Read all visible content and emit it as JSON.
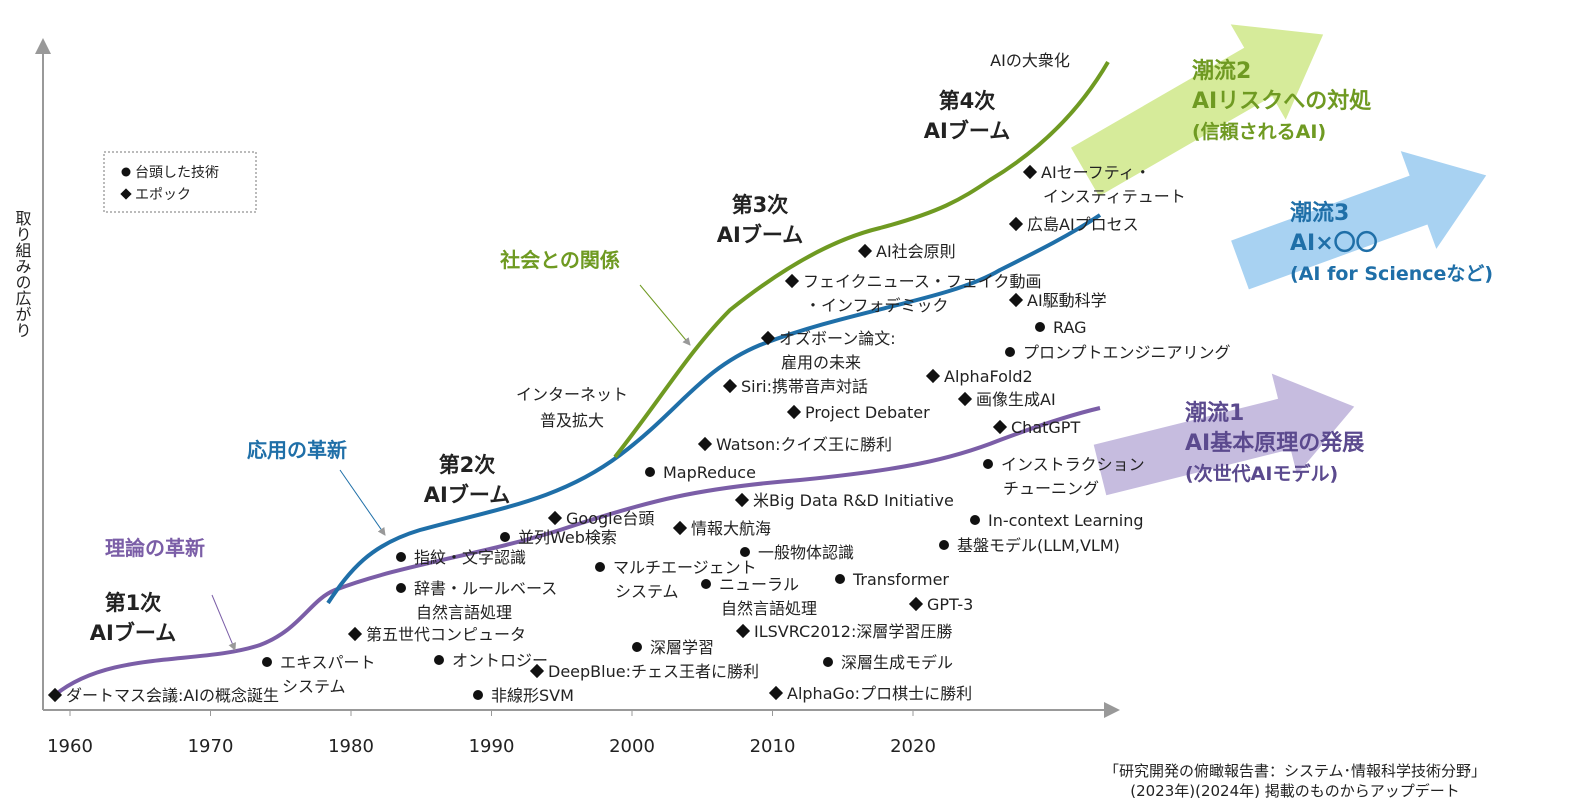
{
  "y_axis_label": "取り組みの広がり",
  "x_axis_ticks": [
    1960,
    1970,
    1980,
    1990,
    2000,
    2010,
    2020
  ],
  "legend": {
    "technology": "台頭した技術",
    "epoch": "エポック"
  },
  "booms": [
    [
      "第1次",
      "AIブーム"
    ],
    [
      "第2次",
      "AIブーム"
    ],
    [
      "第3次",
      "AIブーム"
    ],
    [
      "第4次",
      "AIブーム"
    ]
  ],
  "themes": {
    "theory": "理論の革新",
    "application": "応用の革新",
    "society": "社会との関係"
  },
  "annotations": {
    "internet": [
      "インターネット",
      "普及拡大"
    ],
    "mass": "AIの大衆化"
  },
  "trends": [
    {
      "title": "潮流2",
      "lines": [
        "AIリスクへの対処",
        "(信頼されるAI)"
      ]
    },
    {
      "title": "潮流3",
      "lines": [
        "AI×〇〇",
        "(AI for Scienceなど)"
      ]
    },
    {
      "title": "潮流1",
      "lines": [
        "AI基本原理の発展",
        "(次世代AIモデル)"
      ]
    }
  ],
  "technologies": [
    [
      "エキスパート",
      "システム"
    ],
    [
      "指紋・文字認識"
    ],
    [
      "辞書・ルールベース",
      "自然言語処理"
    ],
    [
      "オントロジー"
    ],
    [
      "非線形SVM"
    ],
    [
      "並列Web検索"
    ],
    [
      "マルチエージェント",
      "システム"
    ],
    [
      "深層学習"
    ],
    [
      "MapReduce"
    ],
    [
      "ニューラル",
      "自然言語処理"
    ],
    [
      "一般物体認識"
    ],
    [
      "Transformer"
    ],
    [
      "深層生成モデル"
    ],
    [
      "基盤モデル(LLM,VLM)"
    ],
    [
      "In-context Learning"
    ],
    [
      "インストラクション",
      "チューニング"
    ],
    [
      "プロンプトエンジニアリング"
    ],
    [
      "RAG"
    ]
  ],
  "epochs": [
    [
      "ダートマス会議:AIの概念誕生"
    ],
    [
      "第五世代コンピュータ"
    ],
    [
      "Google台頭"
    ],
    [
      "情報大航海"
    ],
    [
      "DeepBlue:チェス王者に勝利"
    ],
    [
      "Watson:クイズ王に勝利"
    ],
    [
      "米Big Data R&D Initiative"
    ],
    [
      "Siri:携帯音声対話"
    ],
    [
      "オズボーン論文:",
      "雇用の未来"
    ],
    [
      "フェイクニュース・フェイク動画",
      "・インフォデミック"
    ],
    [
      "Project Debater"
    ],
    [
      "AI社会原則"
    ],
    [
      "AlphaFold2"
    ],
    [
      "画像生成AI"
    ],
    [
      "ChatGPT"
    ],
    [
      "AIセーフティ・",
      "インスティテュート"
    ],
    [
      "広島AIプロセス"
    ],
    [
      "AI駆動科学"
    ],
    [
      "ILSVRC2012:深層学習圧勝"
    ],
    [
      "GPT-3"
    ],
    [
      "AlphaGo:プロ棋士に勝利"
    ]
  ],
  "source": [
    "「研究開発の俯瞰報告書：システム･情報科学技術分野」",
    "(2023年)(2024年) 掲載のものからアップデート"
  ]
}
